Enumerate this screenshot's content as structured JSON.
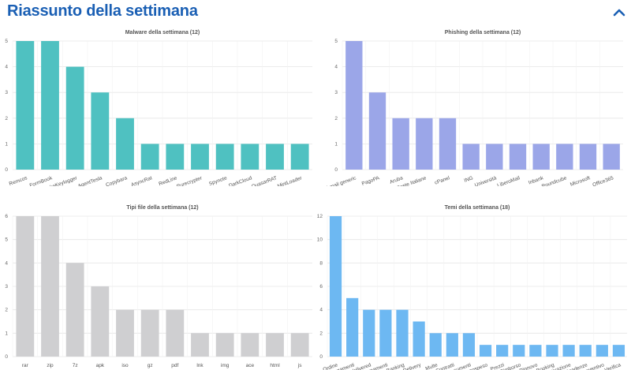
{
  "header": {
    "title": "Riassunto della settimana",
    "collapse_icon": "chevron-up-icon"
  },
  "colors": {
    "title": "#1a5fb4",
    "malware": "#4fc1c1",
    "phishing": "#9ba6e8",
    "files": "#cfcfd1",
    "themes": "#6db8f2"
  },
  "chart_data": [
    {
      "type": "bar",
      "title": "Malware della settimana (12)",
      "categories": [
        "Remcos",
        "FormBook",
        "SnakeKeylogger",
        "AgentTesla",
        "Copybara",
        "AsyncRat",
        "RedLine",
        "Purecrypter",
        "Spynote",
        "DarkCloud",
        "QuasarRAT",
        "MintLoader"
      ],
      "values": [
        5,
        5,
        4,
        3,
        2,
        1,
        1,
        1,
        1,
        1,
        1,
        1
      ],
      "ylim": [
        0,
        5
      ],
      "yticks": [
        0,
        1,
        2,
        3,
        4,
        5
      ],
      "grid": true,
      "color": "#4fc1c1"
    },
    {
      "type": "bar",
      "title": "Phishing della settimana (12)",
      "categories": [
        "Webmail generic",
        "PagoPA",
        "Aruba",
        "Poste Italiane",
        "cPanel",
        "ING",
        "Università",
        "LiberoMail",
        "Inbank",
        "Roundcube",
        "Microsoft",
        "Office365"
      ],
      "values": [
        5,
        3,
        2,
        2,
        2,
        1,
        1,
        1,
        1,
        1,
        1,
        1
      ],
      "ylim": [
        0,
        5
      ],
      "yticks": [
        0,
        1,
        2,
        3,
        4,
        5
      ],
      "grid": true,
      "color": "#9ba6e8"
    },
    {
      "type": "bar",
      "title": "Tipi file della settimana (12)",
      "categories": [
        "rar",
        "zip",
        "7z",
        "apk",
        "iso",
        "gz",
        "pdf",
        "lnk",
        "img",
        "ace",
        "html",
        "js"
      ],
      "values": [
        6,
        6,
        4,
        3,
        2,
        2,
        2,
        1,
        1,
        1,
        1,
        1
      ],
      "ylim": [
        0,
        6
      ],
      "yticks": [
        0,
        1,
        2,
        3,
        4,
        5,
        6
      ],
      "grid": true,
      "color": "#cfcfd1"
    },
    {
      "type": "bar",
      "title": "Temi della settimana (18)",
      "categories": [
        "Ordine",
        "Pagamenti",
        "Undelivered",
        "Aggiornamenti",
        "Banking",
        "Delivery",
        "Multe",
        "Contratti",
        "Documenti",
        "Account sospeso",
        "Prezzi",
        "Rimborso",
        "Rinnovo",
        "Booking",
        "Riattivazione",
        "Scadenze",
        "Preventivo",
        "Verifica"
      ],
      "values": [
        12,
        5,
        4,
        4,
        4,
        3,
        2,
        2,
        2,
        1,
        1,
        1,
        1,
        1,
        1,
        1,
        1,
        1
      ],
      "ylim": [
        0,
        12
      ],
      "yticks": [
        0,
        2,
        4,
        6,
        8,
        10,
        12
      ],
      "grid": true,
      "color": "#6db8f2"
    }
  ]
}
